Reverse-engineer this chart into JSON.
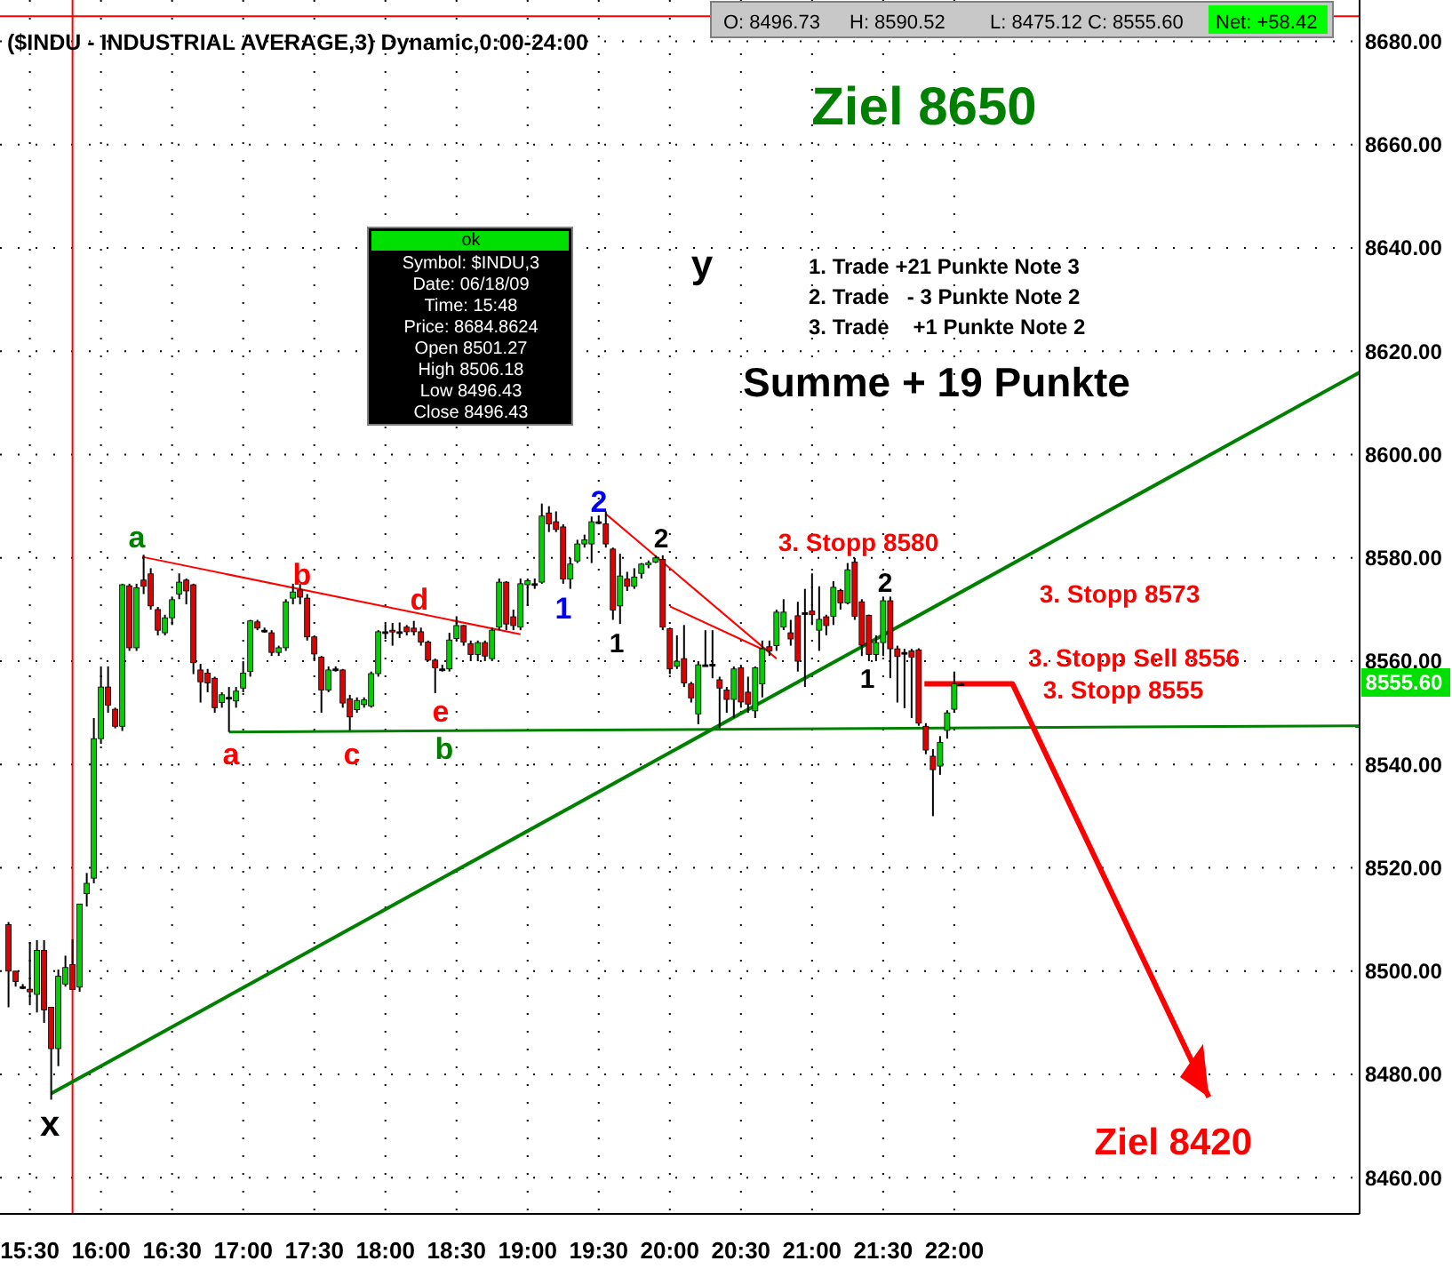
{
  "chart_data": {
    "type": "candlestick",
    "title": "($INDU - INDUSTRIAL AVERAGE,3) Dynamic,0:00-24:00",
    "x": [
      15.35,
      15.4,
      15.45,
      15.5,
      15.55,
      15.6,
      15.65,
      15.7,
      15.75,
      15.8,
      15.85,
      15.9,
      15.95,
      16,
      16.05,
      16.1,
      16.15,
      16.2,
      16.25,
      16.3,
      16.35,
      16.4,
      16.45,
      16.5,
      16.55,
      16.6,
      16.65,
      16.7,
      16.75,
      16.8,
      16.85,
      16.9,
      16.95,
      17,
      17.05,
      17.1,
      17.15,
      17.2,
      17.25,
      17.3,
      17.35,
      17.4,
      17.45,
      17.5,
      17.55,
      17.6,
      17.65,
      17.7,
      17.75,
      17.8,
      17.85,
      17.9,
      17.95,
      18,
      18.05,
      18.1,
      18.15,
      18.2,
      18.25,
      18.3,
      18.35,
      18.4,
      18.45,
      18.5,
      18.55,
      18.6,
      18.65,
      18.7,
      18.75,
      18.8,
      18.85,
      18.9,
      18.95,
      19,
      19.05,
      19.1,
      19.15,
      19.2,
      19.25,
      19.3,
      19.35,
      19.4,
      19.45,
      19.5,
      19.55,
      19.6,
      19.65,
      19.7,
      19.75,
      19.8,
      19.85,
      19.9,
      19.95,
      20,
      20.05,
      20.1,
      20.15,
      20.2,
      20.25,
      20.3,
      20.35,
      20.4,
      20.45,
      20.5,
      20.55,
      20.6,
      20.65,
      20.7,
      20.75,
      20.8,
      20.85,
      20.9,
      20.95,
      21,
      21.05,
      21.1,
      21.15,
      21.2,
      21.25,
      21.3,
      21.35,
      21.4,
      21.45,
      21.5,
      21.55,
      21.6,
      21.65,
      21.7,
      21.75,
      21.8,
      21.85,
      21.9,
      21.95,
      22,
      22.05
    ],
    "ohlc": [
      [
        8509,
        8509.5,
        8493,
        8500
      ],
      [
        8500,
        8500,
        8497,
        8498
      ],
      [
        8497,
        8497.5,
        8496.5,
        8497
      ],
      [
        8496.5,
        8505.6,
        8493.4,
        8496
      ],
      [
        8495.5,
        8506,
        8492,
        8504
      ],
      [
        8504,
        8506,
        8490,
        8492.5
      ],
      [
        8493,
        8493,
        8475.12,
        8485
      ],
      [
        8485,
        8500.3,
        8481.6,
        8499
      ],
      [
        8497.5,
        8503,
        8497,
        8500.7
      ],
      [
        8501.27,
        8506.18,
        8496.43,
        8496.43
      ],
      [
        8496.9,
        8513,
        8496,
        8513
      ],
      [
        8515,
        8519,
        8512.5,
        8517
      ],
      [
        8518,
        8549,
        8517,
        8545
      ],
      [
        8545,
        8559,
        8544,
        8555
      ],
      [
        8555,
        8559,
        8550,
        8551.5
      ],
      [
        8550.7,
        8551,
        8547,
        8547.4
      ],
      [
        8547.4,
        8575,
        8546.5,
        8574.8
      ],
      [
        8574.6,
        8575,
        8562,
        8562.6
      ],
      [
        8562.6,
        8575,
        8562,
        8574.2
      ],
      [
        8575.7,
        8580.6,
        8573,
        8574.5
      ],
      [
        8576.9,
        8578,
        8570,
        8570.7
      ],
      [
        8570,
        8570.5,
        8565,
        8566
      ],
      [
        8565.5,
        8569,
        8565,
        8568.4
      ],
      [
        8568.4,
        8572.5,
        8567,
        8571.9
      ],
      [
        8573,
        8577,
        8572,
        8575.3
      ],
      [
        8575.7,
        8576,
        8571,
        8573.6
      ],
      [
        8574.8,
        8575,
        8557.5,
        8559.7
      ],
      [
        8558.3,
        8559.5,
        8552,
        8556
      ],
      [
        8557.7,
        8558.5,
        8554,
        8555.8
      ],
      [
        8556.7,
        8557,
        8550,
        8551
      ],
      [
        8552,
        8554,
        8551,
        8553.5
      ],
      [
        8553,
        8555,
        8546.3,
        8553
      ],
      [
        8552.3,
        8555,
        8551,
        8554.2
      ],
      [
        8554.8,
        8560,
        8554,
        8557.7
      ],
      [
        8558,
        8568,
        8557,
        8567.8
      ],
      [
        8567.6,
        8568,
        8566,
        8566.4
      ],
      [
        8566,
        8566.5,
        8565.5,
        8566
      ],
      [
        8565.5,
        8566,
        8561,
        8561.7
      ],
      [
        8561.7,
        8563,
        8561,
        8562.6
      ],
      [
        8562.6,
        8572,
        8562,
        8571.5
      ],
      [
        8572.2,
        8575,
        8571,
        8573.4
      ],
      [
        8573.8,
        8575,
        8571,
        8572.4
      ],
      [
        8572.2,
        8573,
        8564,
        8564.7
      ],
      [
        8564.7,
        8565,
        8560,
        8561.4
      ],
      [
        8560.8,
        8561,
        8550,
        8554.4
      ],
      [
        8554.4,
        8559,
        8554,
        8558.3
      ],
      [
        8558.5,
        8559,
        8558,
        8558.5
      ],
      [
        8558.3,
        8558.5,
        8551,
        8551.9
      ],
      [
        8552.7,
        8553.5,
        8546.6,
        8549.2
      ],
      [
        8550.6,
        8553,
        8550,
        8552.4
      ],
      [
        8551.6,
        8553,
        8551,
        8552.5
      ],
      [
        8551.3,
        8558,
        8551,
        8557.6
      ],
      [
        8557.6,
        8566,
        8557,
        8565.7
      ],
      [
        8565.7,
        8567.2,
        8564.3,
        8565.7
      ],
      [
        8566,
        8567.4,
        8563,
        8565.7
      ],
      [
        8565.7,
        8567.5,
        8564.5,
        8565.7
      ],
      [
        8566.6,
        8567,
        8565,
        8565.7
      ],
      [
        8566.4,
        8567.8,
        8565,
        8565.7
      ],
      [
        8565.7,
        8566.5,
        8563,
        8563.7
      ],
      [
        8563.7,
        8564,
        8560,
        8560.2
      ],
      [
        8560.2,
        8560.5,
        8553.8,
        8558.7
      ],
      [
        8558.5,
        8559.3,
        8558,
        8558.5
      ],
      [
        8558.5,
        8565.5,
        8558,
        8564.1
      ],
      [
        8564.4,
        8568.7,
        8564,
        8566.9
      ],
      [
        8566.9,
        8567,
        8563,
        8563.7
      ],
      [
        8563.4,
        8564,
        8560,
        8561.3
      ],
      [
        8561.3,
        8564,
        8560,
        8563.6
      ],
      [
        8563.6,
        8564,
        8560,
        8561
      ],
      [
        8560.5,
        8566.5,
        8560,
        8566
      ],
      [
        8566.6,
        8576,
        8566,
        8575.3
      ],
      [
        8575.3,
        8575.5,
        8566,
        8567.2
      ],
      [
        8568.6,
        8570,
        8566,
        8566.9
      ],
      [
        8566.6,
        8576,
        8566,
        8575
      ],
      [
        8574.8,
        8576,
        8570.7,
        8575.6
      ],
      [
        8575,
        8576,
        8574,
        8575
      ],
      [
        8575.3,
        8590.52,
        8575,
        8588.1
      ],
      [
        8588.7,
        8590,
        8585,
        8586.6
      ],
      [
        8587,
        8589,
        8585,
        8585.5
      ],
      [
        8586,
        8586.5,
        8575,
        8575.9
      ],
      [
        8575.9,
        8580,
        8574,
        8578.8
      ],
      [
        8579.4,
        8583.5,
        8579,
        8582.7
      ],
      [
        8582.7,
        8584.5,
        8582,
        8583.5
      ],
      [
        8582.7,
        8588,
        8579,
        8587
      ],
      [
        8587,
        8588,
        8586.5,
        8587
      ],
      [
        8586.6,
        8589,
        8582,
        8582.7
      ],
      [
        8581.7,
        8582,
        8568,
        8569.9
      ],
      [
        8570.7,
        8580.8,
        8567.2,
        8576.5
      ],
      [
        8575.9,
        8577.3,
        8573.6,
        8574.5
      ],
      [
        8574.5,
        8578,
        8574,
        8576.3
      ],
      [
        8577,
        8579,
        8576,
        8578.8
      ],
      [
        8578.8,
        8579.5,
        8578,
        8579
      ],
      [
        8579.2,
        8580.5,
        8579,
        8580
      ],
      [
        8579.7,
        8580.5,
        8566,
        8566.6
      ],
      [
        8566.3,
        8566.5,
        8557.5,
        8558.5
      ],
      [
        8559,
        8565,
        8558.5,
        8560
      ],
      [
        8560.5,
        8567,
        8555,
        8555.8
      ],
      [
        8555.6,
        8556,
        8552,
        8552.9
      ],
      [
        8549.8,
        8560,
        8547.8,
        8559.3
      ],
      [
        8559.3,
        8566,
        8559,
        8559.3
      ],
      [
        8559.4,
        8566,
        8556.7,
        8559.4
      ],
      [
        8556.4,
        8557,
        8547,
        8554.8
      ],
      [
        8554.4,
        8555,
        8550,
        8552.6
      ],
      [
        8552.6,
        8559,
        8549,
        8558.5
      ],
      [
        8558.7,
        8559.3,
        8551,
        8552.1
      ],
      [
        8554,
        8557,
        8550,
        8551.7
      ],
      [
        8550.4,
        8559,
        8549,
        8558.7
      ],
      [
        8555.6,
        8564,
        8553,
        8562.4
      ],
      [
        8562.8,
        8564,
        8561,
        8562
      ],
      [
        8563,
        8570,
        8562,
        8569.5
      ],
      [
        8566.6,
        8572,
        8566,
        8569.5
      ],
      [
        8565.5,
        8568,
        8563,
        8564.3
      ],
      [
        8568.8,
        8571.5,
        8558,
        8560
      ],
      [
        8569.4,
        8574,
        8555,
        8569.4
      ],
      [
        8569.7,
        8577,
        8567,
        8569
      ],
      [
        8566,
        8574.5,
        8562,
        8568.1
      ],
      [
        8568.6,
        8569,
        8565,
        8566.9
      ],
      [
        8568.7,
        8575.5,
        8567,
        8574.3
      ],
      [
        8573.7,
        8574,
        8570,
        8571.3
      ],
      [
        8571.3,
        8579,
        8571,
        8577.7
      ],
      [
        8579.2,
        8580,
        8568,
        8568.7
      ],
      [
        8571.5,
        8572,
        8561,
        8563.1
      ],
      [
        8568.9,
        8569,
        8560,
        8561.3
      ],
      [
        8561.3,
        8565,
        8560,
        8563.6
      ],
      [
        8563.6,
        8572.5,
        8561,
        8571.7
      ],
      [
        8571.7,
        8572.5,
        8556.7,
        8562.4
      ],
      [
        8562.4,
        8563,
        8552,
        8560.9
      ],
      [
        8561.7,
        8562.4,
        8550.9,
        8561.7
      ],
      [
        8562,
        8562.4,
        8549,
        8560.8
      ],
      [
        8562.2,
        8562.5,
        8547.5,
        8548
      ],
      [
        8547.4,
        8548,
        8542,
        8542.8
      ],
      [
        8541.6,
        8543,
        8530,
        8539
      ],
      [
        8539.7,
        8545.5,
        8538,
        8544.3
      ],
      [
        8546.6,
        8550.5,
        8545,
        8550
      ],
      [
        8550.7,
        8558,
        8550,
        8555.6
      ],
      [
        8555.6,
        8555.8,
        8555.4,
        8555.6
      ]
    ],
    "series": [
      {
        "type": "line",
        "color": "#008000",
        "x": [
          15.65,
          24.85
        ],
        "values": [
          8476.3,
          8615.9
        ]
      },
      {
        "type": "line",
        "color": "#008000",
        "x": [
          16.9,
          24.85
        ],
        "values": [
          8546.3,
          8547.5
        ]
      },
      {
        "type": "line",
        "color": "#ff0000",
        "x": [
          16.29,
          18.95
        ],
        "values": [
          8580.2,
          8565.2
        ]
      },
      {
        "type": "line",
        "color": "#ff0000",
        "x": [
          19.55,
          20.75
        ],
        "values": [
          8588.5,
          8560.5
        ]
      },
      {
        "type": "line",
        "color": "#ff0000",
        "x": [
          20,
          20.66
        ],
        "values": [
          8570.6,
          8562.2
        ]
      },
      {
        "type": "line",
        "color": "#ff0000",
        "x": [
          21.79,
          22.41,
          23.79
        ],
        "values": [
          8555.6,
          8555.6,
          8475.6
        ]
      }
    ],
    "ref_lines": [
      {
        "axis": "x",
        "value": 15.8,
        "color": "#ff0000"
      },
      {
        "axis": "y",
        "value": 8684.86,
        "color": "#ff0000"
      }
    ],
    "xlim": [
      15.29,
      24.85
    ],
    "xticks": [
      {
        "value": 15.5,
        "label": "15:30"
      },
      {
        "value": 16,
        "label": "16:00"
      },
      {
        "value": 16.5,
        "label": "16:30"
      },
      {
        "value": 17,
        "label": "17:00"
      },
      {
        "value": 17.5,
        "label": "17:30"
      },
      {
        "value": 18,
        "label": "18:00"
      },
      {
        "value": 18.5,
        "label": "18:30"
      },
      {
        "value": 19,
        "label": "19:00"
      },
      {
        "value": 19.5,
        "label": "19:30"
      },
      {
        "value": 20,
        "label": "20:00"
      },
      {
        "value": 20.5,
        "label": "20:30"
      },
      {
        "value": 21,
        "label": "21:00"
      },
      {
        "value": 21.5,
        "label": "21:30"
      },
      {
        "value": 22,
        "label": "22:00"
      }
    ],
    "ylim": [
      8453,
      8688
    ],
    "yticks": [
      {
        "value": 8460,
        "label": "8460.00"
      },
      {
        "value": 8480,
        "label": "8480.00"
      },
      {
        "value": 8500,
        "label": "8500.00"
      },
      {
        "value": 8520,
        "label": "8520.00"
      },
      {
        "value": 8540,
        "label": "8540.00"
      },
      {
        "value": 8560,
        "label": "8560.00"
      },
      {
        "value": 8580,
        "label": "8580.00"
      },
      {
        "value": 8600,
        "label": "8600.00"
      },
      {
        "value": 8620,
        "label": "8620.00"
      },
      {
        "value": 8640,
        "label": "8640.00"
      },
      {
        "value": 8660,
        "label": "8660.00"
      },
      {
        "value": 8680,
        "label": "8680.00"
      }
    ],
    "grid": true,
    "annotations": [
      "Ziel 8650",
      "y",
      "1. Trade +21 Punkte Note 3",
      "2. Trade   - 3 Punkte Note 2",
      "3. Trade    +1 Punkte Note 2",
      "Summe + 19 Punkte",
      "ok",
      "Symbol: $INDU,3",
      "Date: 06/18/09",
      "Time: 15:48",
      "Price: 8684.8624",
      "Open 8501.27",
      "High 8506.18",
      "Low 8496.43",
      "Close 8496.43",
      "O: 8496.73",
      "H: 8590.52",
      "L: 8475.12",
      "C: 8555.60",
      "Net: +58.42",
      "a",
      "b",
      "d",
      "a",
      "c",
      "e",
      "b",
      "1",
      "2",
      "2",
      "1",
      "2",
      "1",
      "x",
      "3. Stopp 8580",
      "3. Stopp 8573",
      "3. Stopp Sell 8556",
      "3. Stopp 8555",
      {
        "text": "Ziel 8420",
        "x": 23.79,
        "y": 8475.6
      },
      "8555.60"
    ]
  }
}
